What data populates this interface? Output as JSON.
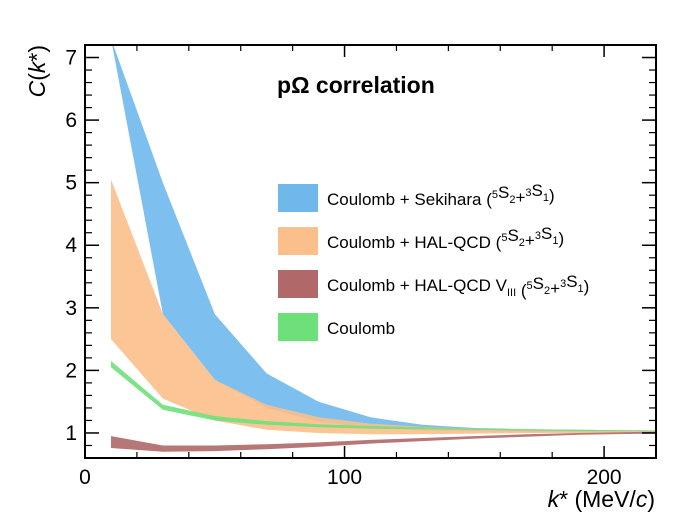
{
  "chart_data": {
    "type": "area",
    "title_parts": [
      {
        "text": "p",
        "style": "normal"
      },
      {
        "text": "Ω",
        "style": "normal"
      },
      {
        "text": " correlation",
        "style": "normal"
      }
    ],
    "xlabel_parts": [
      {
        "text": "k",
        "style": "italic"
      },
      {
        "text": "* (MeV/",
        "style": "normal"
      },
      {
        "text": "c",
        "style": "italic"
      },
      {
        "text": ")",
        "style": "normal"
      }
    ],
    "ylabel_parts": [
      {
        "text": "C",
        "style": "italic"
      },
      {
        "text": "(",
        "style": "normal"
      },
      {
        "text": "k",
        "style": "italic"
      },
      {
        "text": "*)",
        "style": "normal"
      }
    ],
    "xlim": [
      0,
      220
    ],
    "ylim": [
      0.6,
      7.2
    ],
    "x_ticks": [
      0,
      100,
      200
    ],
    "y_ticks": [
      1,
      2,
      3,
      4,
      5,
      6,
      7
    ],
    "grid": false,
    "legend_position": "right",
    "series": [
      {
        "key": "sekihara",
        "color": "#6fb8ec",
        "legend_parts": [
          {
            "text": "Coulomb + Sekihara (",
            "style": "normal"
          },
          {
            "text": "5",
            "style": "sup"
          },
          {
            "text": "S",
            "style": "normal"
          },
          {
            "text": "2",
            "style": "sub"
          },
          {
            "text": "+",
            "style": "normal"
          },
          {
            "text": "3",
            "style": "sup"
          },
          {
            "text": "S",
            "style": "normal"
          },
          {
            "text": "1",
            "style": "sub"
          },
          {
            "text": ")",
            "style": "normal"
          }
        ],
        "x": [
          10,
          30,
          50,
          70,
          90,
          110,
          130,
          150,
          170,
          190,
          220
        ],
        "lower": [
          7.3,
          2.9,
          1.85,
          1.4,
          1.18,
          1.08,
          1.04,
          1.03,
          1.02,
          1.02,
          1.02
        ],
        "upper": [
          7.3,
          5.0,
          2.9,
          1.95,
          1.5,
          1.25,
          1.13,
          1.08,
          1.06,
          1.05,
          1.04
        ]
      },
      {
        "key": "halqcd",
        "color": "#fbbf8b",
        "legend_parts": [
          {
            "text": "Coulomb + HAL-QCD (",
            "style": "normal"
          },
          {
            "text": "5",
            "style": "sup"
          },
          {
            "text": "S",
            "style": "normal"
          },
          {
            "text": "2",
            "style": "sub"
          },
          {
            "text": "+",
            "style": "normal"
          },
          {
            "text": "3",
            "style": "sup"
          },
          {
            "text": "S",
            "style": "normal"
          },
          {
            "text": "1",
            "style": "sub"
          },
          {
            "text": ")",
            "style": "normal"
          }
        ],
        "x": [
          10,
          30,
          50,
          70,
          90,
          110,
          130,
          150,
          170,
          190,
          220
        ],
        "lower": [
          2.5,
          1.55,
          1.2,
          1.05,
          1.0,
          0.98,
          0.98,
          0.99,
          1.0,
          1.0,
          1.01
        ],
        "upper": [
          5.05,
          2.9,
          1.85,
          1.45,
          1.25,
          1.15,
          1.1,
          1.07,
          1.05,
          1.04,
          1.03
        ]
      },
      {
        "key": "halqcd_viii",
        "color": "#b06868",
        "legend_parts": [
          {
            "text": "Coulomb + HAL-QCD V",
            "style": "normal"
          },
          {
            "text": "III",
            "style": "sub"
          },
          {
            "text": " (",
            "style": "normal"
          },
          {
            "text": "5",
            "style": "sup"
          },
          {
            "text": "S",
            "style": "normal"
          },
          {
            "text": "2",
            "style": "sub"
          },
          {
            "text": "+",
            "style": "normal"
          },
          {
            "text": "3",
            "style": "sup"
          },
          {
            "text": "S",
            "style": "normal"
          },
          {
            "text": "1",
            "style": "sub"
          },
          {
            "text": ")",
            "style": "normal"
          }
        ],
        "x": [
          10,
          30,
          50,
          70,
          90,
          110,
          130,
          150,
          170,
          190,
          220
        ],
        "lower": [
          0.76,
          0.7,
          0.71,
          0.74,
          0.78,
          0.83,
          0.87,
          0.91,
          0.94,
          0.97,
          0.99
        ],
        "upper": [
          0.95,
          0.8,
          0.8,
          0.82,
          0.85,
          0.89,
          0.92,
          0.95,
          0.98,
          1.0,
          1.02
        ]
      },
      {
        "key": "coulomb",
        "color": "#6ee07a",
        "legend_parts": [
          {
            "text": "Coulomb",
            "style": "normal"
          }
        ],
        "x": [
          10,
          30,
          50,
          70,
          90,
          110,
          130,
          150,
          170,
          190,
          220
        ],
        "lower": [
          2.05,
          1.37,
          1.2,
          1.13,
          1.09,
          1.07,
          1.06,
          1.05,
          1.04,
          1.03,
          1.03
        ],
        "upper": [
          2.15,
          1.45,
          1.27,
          1.19,
          1.14,
          1.11,
          1.09,
          1.07,
          1.06,
          1.05,
          1.04
        ]
      }
    ]
  }
}
